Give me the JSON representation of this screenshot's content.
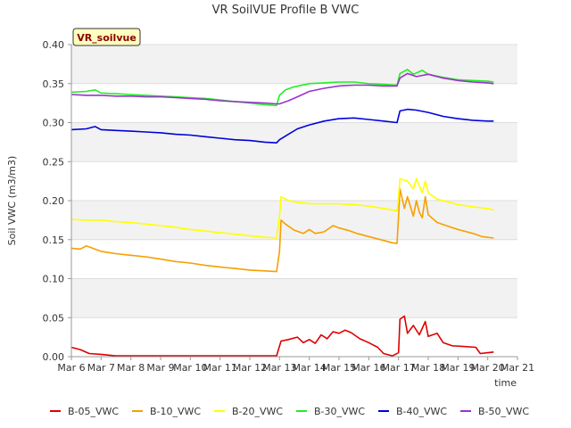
{
  "chart_data": {
    "type": "line",
    "title": "VR SoilVUE Profile B VWC",
    "badge": "VR_soilvue",
    "xlabel": "time",
    "ylabel": "Soil VWC (m3/m3)",
    "xlim": [
      6,
      21
    ],
    "ylim": [
      0,
      0.4
    ],
    "grid": true,
    "legend_position": "bottom",
    "x_ticks": [
      6,
      7,
      8,
      9,
      10,
      11,
      12,
      13,
      14,
      15,
      16,
      17,
      18,
      19,
      20,
      21
    ],
    "x_tick_labels": [
      "Mar 6",
      "Mar 7",
      "Mar 8",
      "Mar 9",
      "Mar 10",
      "Mar 11",
      "Mar 12",
      "Mar 13",
      "Mar 14",
      "Mar 15",
      "Mar 16",
      "Mar 17",
      "Mar 18",
      "Mar 19",
      "Mar 20",
      "Mar 21"
    ],
    "y_ticks": [
      0.0,
      0.05,
      0.1,
      0.15,
      0.2,
      0.25,
      0.3,
      0.35,
      0.4
    ],
    "y_tick_labels": [
      "0.00",
      "0.05",
      "0.10",
      "0.15",
      "0.20",
      "0.25",
      "0.30",
      "0.35",
      "0.40"
    ],
    "series": [
      {
        "name": "B-05_VWC",
        "color": "#dd0000",
        "points": [
          [
            6.0,
            0.012
          ],
          [
            6.3,
            0.009
          ],
          [
            6.6,
            0.004
          ],
          [
            7.0,
            0.003
          ],
          [
            7.5,
            0.001
          ],
          [
            8.0,
            0.001
          ],
          [
            9.0,
            0.001
          ],
          [
            10.0,
            0.001
          ],
          [
            11.0,
            0.001
          ],
          [
            12.0,
            0.001
          ],
          [
            12.9,
            0.001
          ],
          [
            13.05,
            0.02
          ],
          [
            13.3,
            0.022
          ],
          [
            13.6,
            0.025
          ],
          [
            13.8,
            0.018
          ],
          [
            14.0,
            0.022
          ],
          [
            14.2,
            0.017
          ],
          [
            14.4,
            0.028
          ],
          [
            14.6,
            0.023
          ],
          [
            14.8,
            0.032
          ],
          [
            15.0,
            0.03
          ],
          [
            15.2,
            0.034
          ],
          [
            15.4,
            0.031
          ],
          [
            15.7,
            0.023
          ],
          [
            16.0,
            0.018
          ],
          [
            16.3,
            0.012
          ],
          [
            16.5,
            0.004
          ],
          [
            16.8,
            0.001
          ],
          [
            17.0,
            0.005
          ],
          [
            17.05,
            0.048
          ],
          [
            17.2,
            0.052
          ],
          [
            17.3,
            0.03
          ],
          [
            17.5,
            0.04
          ],
          [
            17.7,
            0.028
          ],
          [
            17.9,
            0.045
          ],
          [
            18.0,
            0.026
          ],
          [
            18.3,
            0.03
          ],
          [
            18.5,
            0.018
          ],
          [
            18.8,
            0.014
          ],
          [
            19.2,
            0.013
          ],
          [
            19.6,
            0.012
          ],
          [
            19.75,
            0.004
          ],
          [
            20.0,
            0.005
          ],
          [
            20.2,
            0.006
          ]
        ]
      },
      {
        "name": "B-10_VWC",
        "color": "#f5a000",
        "points": [
          [
            6.0,
            0.139
          ],
          [
            6.3,
            0.138
          ],
          [
            6.5,
            0.142
          ],
          [
            7.0,
            0.135
          ],
          [
            7.5,
            0.132
          ],
          [
            8.0,
            0.13
          ],
          [
            8.5,
            0.128
          ],
          [
            9.0,
            0.125
          ],
          [
            9.5,
            0.122
          ],
          [
            10.0,
            0.12
          ],
          [
            10.5,
            0.117
          ],
          [
            11.0,
            0.115
          ],
          [
            11.5,
            0.113
          ],
          [
            12.0,
            0.111
          ],
          [
            12.5,
            0.11
          ],
          [
            12.9,
            0.109
          ],
          [
            13.0,
            0.135
          ],
          [
            13.05,
            0.175
          ],
          [
            13.2,
            0.17
          ],
          [
            13.5,
            0.162
          ],
          [
            13.8,
            0.158
          ],
          [
            14.0,
            0.163
          ],
          [
            14.2,
            0.158
          ],
          [
            14.5,
            0.16
          ],
          [
            14.8,
            0.168
          ],
          [
            15.0,
            0.165
          ],
          [
            15.3,
            0.162
          ],
          [
            15.6,
            0.158
          ],
          [
            16.0,
            0.154
          ],
          [
            16.4,
            0.15
          ],
          [
            16.8,
            0.146
          ],
          [
            16.95,
            0.145
          ],
          [
            17.0,
            0.18
          ],
          [
            17.05,
            0.215
          ],
          [
            17.2,
            0.19
          ],
          [
            17.3,
            0.205
          ],
          [
            17.5,
            0.18
          ],
          [
            17.6,
            0.2
          ],
          [
            17.7,
            0.185
          ],
          [
            17.8,
            0.178
          ],
          [
            17.9,
            0.205
          ],
          [
            18.0,
            0.182
          ],
          [
            18.3,
            0.172
          ],
          [
            18.6,
            0.168
          ],
          [
            19.0,
            0.163
          ],
          [
            19.5,
            0.158
          ],
          [
            19.8,
            0.154
          ],
          [
            20.2,
            0.152
          ]
        ]
      },
      {
        "name": "B-20_VWC",
        "color": "#ffff00",
        "points": [
          [
            6.0,
            0.176
          ],
          [
            6.5,
            0.175
          ],
          [
            7.0,
            0.175
          ],
          [
            7.5,
            0.173
          ],
          [
            8.0,
            0.172
          ],
          [
            8.5,
            0.17
          ],
          [
            9.0,
            0.168
          ],
          [
            9.5,
            0.166
          ],
          [
            10.0,
            0.163
          ],
          [
            10.5,
            0.161
          ],
          [
            11.0,
            0.159
          ],
          [
            11.5,
            0.157
          ],
          [
            12.0,
            0.155
          ],
          [
            12.5,
            0.153
          ],
          [
            12.9,
            0.152
          ],
          [
            13.0,
            0.18
          ],
          [
            13.05,
            0.205
          ],
          [
            13.3,
            0.2
          ],
          [
            13.6,
            0.198
          ],
          [
            14.0,
            0.196
          ],
          [
            14.5,
            0.196
          ],
          [
            15.0,
            0.196
          ],
          [
            15.5,
            0.195
          ],
          [
            16.0,
            0.193
          ],
          [
            16.5,
            0.19
          ],
          [
            16.95,
            0.187
          ],
          [
            17.0,
            0.205
          ],
          [
            17.05,
            0.228
          ],
          [
            17.3,
            0.225
          ],
          [
            17.5,
            0.215
          ],
          [
            17.6,
            0.228
          ],
          [
            17.8,
            0.21
          ],
          [
            17.9,
            0.225
          ],
          [
            18.0,
            0.21
          ],
          [
            18.3,
            0.202
          ],
          [
            18.7,
            0.198
          ],
          [
            19.0,
            0.195
          ],
          [
            19.5,
            0.192
          ],
          [
            20.0,
            0.19
          ],
          [
            20.2,
            0.188
          ]
        ]
      },
      {
        "name": "B-30_VWC",
        "color": "#22ee22",
        "points": [
          [
            6.0,
            0.339
          ],
          [
            6.5,
            0.34
          ],
          [
            6.8,
            0.342
          ],
          [
            7.0,
            0.338
          ],
          [
            7.5,
            0.337
          ],
          [
            8.0,
            0.336
          ],
          [
            8.5,
            0.335
          ],
          [
            9.0,
            0.334
          ],
          [
            9.5,
            0.333
          ],
          [
            10.0,
            0.332
          ],
          [
            10.5,
            0.331
          ],
          [
            11.0,
            0.329
          ],
          [
            11.5,
            0.327
          ],
          [
            12.0,
            0.325
          ],
          [
            12.5,
            0.323
          ],
          [
            12.9,
            0.322
          ],
          [
            13.0,
            0.335
          ],
          [
            13.2,
            0.342
          ],
          [
            13.5,
            0.346
          ],
          [
            14.0,
            0.35
          ],
          [
            14.5,
            0.351
          ],
          [
            15.0,
            0.352
          ],
          [
            15.5,
            0.352
          ],
          [
            16.0,
            0.35
          ],
          [
            16.5,
            0.349
          ],
          [
            16.95,
            0.348
          ],
          [
            17.05,
            0.363
          ],
          [
            17.3,
            0.368
          ],
          [
            17.5,
            0.362
          ],
          [
            17.8,
            0.367
          ],
          [
            18.0,
            0.362
          ],
          [
            18.5,
            0.358
          ],
          [
            19.0,
            0.355
          ],
          [
            19.5,
            0.354
          ],
          [
            20.0,
            0.353
          ],
          [
            20.2,
            0.352
          ]
        ]
      },
      {
        "name": "B-40_VWC",
        "color": "#0000dd",
        "points": [
          [
            6.0,
            0.291
          ],
          [
            6.5,
            0.292
          ],
          [
            6.8,
            0.295
          ],
          [
            7.0,
            0.291
          ],
          [
            7.5,
            0.29
          ],
          [
            8.0,
            0.289
          ],
          [
            8.5,
            0.288
          ],
          [
            9.0,
            0.287
          ],
          [
            9.5,
            0.285
          ],
          [
            10.0,
            0.284
          ],
          [
            10.5,
            0.282
          ],
          [
            11.0,
            0.28
          ],
          [
            11.5,
            0.278
          ],
          [
            12.0,
            0.277
          ],
          [
            12.5,
            0.275
          ],
          [
            12.9,
            0.274
          ],
          [
            13.0,
            0.278
          ],
          [
            13.3,
            0.285
          ],
          [
            13.6,
            0.292
          ],
          [
            14.0,
            0.297
          ],
          [
            14.5,
            0.302
          ],
          [
            15.0,
            0.305
          ],
          [
            15.5,
            0.306
          ],
          [
            16.0,
            0.304
          ],
          [
            16.5,
            0.302
          ],
          [
            16.95,
            0.3
          ],
          [
            17.05,
            0.315
          ],
          [
            17.3,
            0.317
          ],
          [
            17.6,
            0.316
          ],
          [
            18.0,
            0.313
          ],
          [
            18.5,
            0.308
          ],
          [
            19.0,
            0.305
          ],
          [
            19.5,
            0.303
          ],
          [
            20.0,
            0.302
          ],
          [
            20.2,
            0.302
          ]
        ]
      },
      {
        "name": "B-50_VWC",
        "color": "#9933cc",
        "points": [
          [
            6.0,
            0.336
          ],
          [
            6.5,
            0.335
          ],
          [
            7.0,
            0.335
          ],
          [
            7.5,
            0.334
          ],
          [
            8.0,
            0.334
          ],
          [
            8.5,
            0.333
          ],
          [
            9.0,
            0.333
          ],
          [
            9.5,
            0.332
          ],
          [
            10.0,
            0.331
          ],
          [
            10.5,
            0.33
          ],
          [
            11.0,
            0.328
          ],
          [
            11.5,
            0.327
          ],
          [
            12.0,
            0.326
          ],
          [
            12.5,
            0.325
          ],
          [
            12.9,
            0.324
          ],
          [
            13.0,
            0.324
          ],
          [
            13.3,
            0.328
          ],
          [
            13.6,
            0.333
          ],
          [
            14.0,
            0.34
          ],
          [
            14.5,
            0.344
          ],
          [
            15.0,
            0.347
          ],
          [
            15.5,
            0.348
          ],
          [
            16.0,
            0.348
          ],
          [
            16.5,
            0.347
          ],
          [
            16.95,
            0.347
          ],
          [
            17.05,
            0.357
          ],
          [
            17.3,
            0.363
          ],
          [
            17.6,
            0.359
          ],
          [
            18.0,
            0.362
          ],
          [
            18.5,
            0.357
          ],
          [
            19.0,
            0.354
          ],
          [
            19.5,
            0.352
          ],
          [
            20.0,
            0.351
          ],
          [
            20.2,
            0.35
          ]
        ]
      }
    ]
  }
}
